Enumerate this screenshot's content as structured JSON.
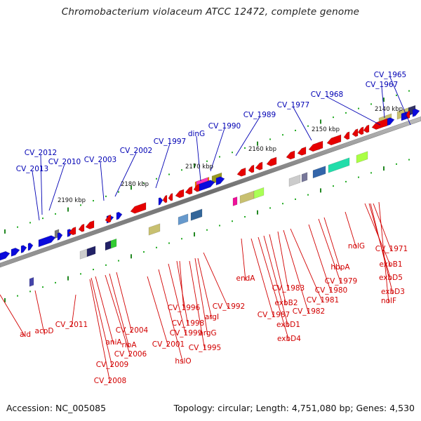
{
  "title": "Chromobacterium violaceum ATCC 12472, complete genome",
  "footer": {
    "accession": "Accession: NC_005085",
    "summary": "Topology: circular; Length: 4,751,080 bp; Genes: 4,530"
  },
  "colors": {
    "forward_gene": "#0a0adc",
    "reverse_gene": "#e60000",
    "forward_label": "#0000b4",
    "reverse_label": "#d20000",
    "backbone": "#7a7a7a",
    "tick_major": "#228822",
    "tick_minor": "#22aa22",
    "background": "#ffffff"
  },
  "ruler_ticks": [
    "2140 kbp",
    "2150 kbp",
    "2160 kbp",
    "2170 kbp",
    "2180 kbp",
    "2190 kbp"
  ],
  "forward_labels": [
    "CV_1965",
    "CV_1967",
    "CV_1968",
    "CV_1977",
    "CV_1989",
    "CV_1990",
    "dinG",
    "CV_1997",
    "CV_2002",
    "CV_2003",
    "CV_2010",
    "CV_2012",
    "CV_2013"
  ],
  "reverse_labels": [
    "ald",
    "acpD",
    "CV_2011",
    "CV_2009",
    "CV_2008",
    "CV_2006",
    "aniA",
    "ribA",
    "CV_2004",
    "CV_2001",
    "hslO",
    "CV_1999",
    "CV_1998",
    "CV_1996",
    "CV_1995",
    "argG",
    "argI",
    "CV_1992",
    "endA",
    "CV_1987",
    "exbD4",
    "exbD1",
    "exbB2",
    "CV_1983",
    "CV_1982",
    "CV_1981",
    "CV_1980",
    "CV_1979",
    "hbpA",
    "nolG",
    "CV_1971",
    "exbB1",
    "exbD5",
    "exbD3",
    "nolF"
  ]
}
